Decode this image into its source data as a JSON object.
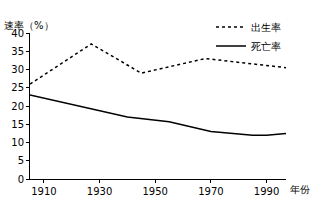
{
  "chart_data": {
    "type": "line",
    "y_label": "速率（%）",
    "x_label": "年份",
    "series": [
      {
        "name": "出生率",
        "color": "#000000",
        "line_style": "dot",
        "x": [
          1905,
          1927,
          1945,
          1968,
          1997
        ],
        "values": [
          26,
          37,
          29,
          33,
          30.5
        ]
      },
      {
        "name": "死亡率",
        "color": "#000000",
        "line_style": "solid",
        "x": [
          1905,
          1925,
          1940,
          1955,
          1970,
          1985,
          1990,
          1997
        ],
        "values": [
          23,
          19.5,
          17,
          15.7,
          13,
          12,
          12,
          12.5
        ]
      }
    ],
    "xlim": [
      1905,
      1997
    ],
    "xticks": [
      1910,
      1930,
      1950,
      1970,
      1990
    ],
    "ylim": [
      0,
      40
    ],
    "yticks": [
      0,
      5,
      10,
      15,
      20,
      25,
      30,
      35,
      40
    ],
    "grid": false,
    "legend": "top-right"
  }
}
